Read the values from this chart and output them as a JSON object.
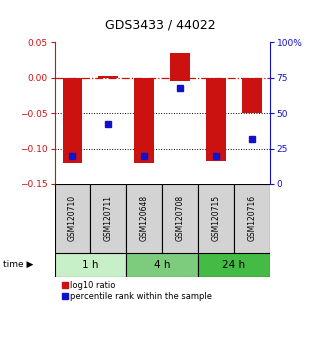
{
  "title": "GDS3433 / 44022",
  "samples": [
    "GSM120710",
    "GSM120711",
    "GSM120648",
    "GSM120708",
    "GSM120715",
    "GSM120716"
  ],
  "log10_ratio": [
    -0.12,
    0.003,
    -0.12,
    0.035,
    -0.118,
    -0.05
  ],
  "log10_ratio_bottom": [
    0,
    0,
    0,
    -0.005,
    0,
    0
  ],
  "percentile_rank": [
    20,
    42,
    20,
    68,
    20,
    32
  ],
  "time_groups": [
    {
      "label": "1 h",
      "start": 0,
      "end": 2,
      "color": "#c8f0c8"
    },
    {
      "label": "4 h",
      "start": 2,
      "end": 4,
      "color": "#7dcc7d"
    },
    {
      "label": "24 h",
      "start": 4,
      "end": 6,
      "color": "#44bb44"
    }
  ],
  "ylim_left": [
    -0.15,
    0.05
  ],
  "ylim_right": [
    0,
    100
  ],
  "yticks_left": [
    0.05,
    0,
    -0.05,
    -0.1,
    -0.15
  ],
  "yticks_right": [
    100,
    75,
    50,
    25,
    0
  ],
  "bar_color": "#cc1111",
  "dot_color": "#1111cc",
  "background_color": "#ffffff",
  "legend_red_label": "log10 ratio",
  "legend_blue_label": "percentile rank within the sample"
}
